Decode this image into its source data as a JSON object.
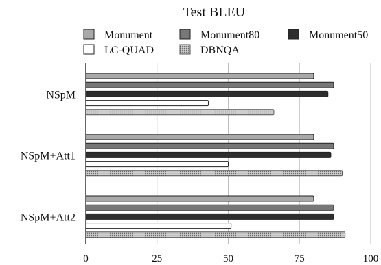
{
  "chart_data": {
    "type": "bar",
    "orientation": "horizontal",
    "title": "Test BLEU",
    "categories": [
      "NSpM",
      "NSpM+Att1",
      "NSpM+Att2"
    ],
    "xlim": [
      0,
      100
    ],
    "x_ticks": [
      "0",
      "25",
      "50",
      "75",
      "100"
    ],
    "grid": true,
    "legend_position": "top",
    "series": [
      {
        "name": "Monument",
        "values": [
          80,
          80,
          80
        ],
        "color": "#a9a9a9",
        "pattern": "solid"
      },
      {
        "name": "Monument80",
        "values": [
          87,
          87,
          87
        ],
        "color": "#777777",
        "pattern": "solid"
      },
      {
        "name": "Monument50",
        "values": [
          85,
          86,
          87
        ],
        "color": "#2e2e2e",
        "pattern": "solid"
      },
      {
        "name": "LC-QUAD",
        "values": [
          43,
          50,
          51
        ],
        "color": "#ffffff",
        "pattern": "solid"
      },
      {
        "name": "DBNQA",
        "values": [
          66,
          90,
          91
        ],
        "color": "#c8c8c8",
        "pattern": "dotted"
      }
    ]
  }
}
